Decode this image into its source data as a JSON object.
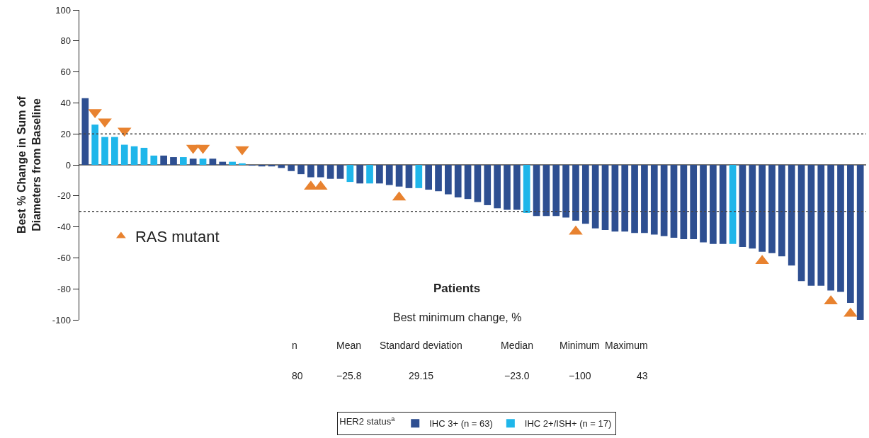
{
  "chart_data": {
    "type": "bar",
    "ylabel": "Best % Change in Sum of\nDiameters from Baseline",
    "categories": [
      null,
      null,
      null,
      null,
      null,
      null,
      null,
      null,
      null,
      null,
      null,
      null,
      null,
      null,
      null,
      null,
      null,
      null,
      null,
      null,
      null,
      null,
      null,
      null,
      null,
      null,
      null,
      null,
      null,
      null,
      null,
      null,
      null,
      null,
      null,
      null,
      null,
      null,
      null,
      null,
      null,
      null,
      null,
      null,
      null,
      null,
      null,
      null,
      null,
      null,
      null,
      null,
      null,
      null,
      null,
      null,
      null,
      null,
      null,
      null,
      null,
      null,
      null,
      null,
      null,
      null,
      null,
      null,
      null,
      null,
      null,
      null,
      null,
      null,
      null,
      null,
      null,
      null,
      null,
      null
    ],
    "series": [
      {
        "name": "IHC 3+ (n = 63)",
        "color": "#2e4f91",
        "values": [
          43,
          null,
          null,
          null,
          null,
          null,
          null,
          null,
          6,
          5,
          null,
          4,
          null,
          4,
          2,
          null,
          null,
          -0.5,
          -1,
          -1,
          -2,
          -4,
          -6,
          -8,
          -8,
          -9,
          -9,
          null,
          -12,
          null,
          -12,
          -13,
          -14,
          -15,
          null,
          -16,
          -17,
          -19,
          -21,
          -22,
          -24,
          -26,
          -28,
          -29,
          -29,
          null,
          -33,
          -33,
          -33,
          -34,
          -36,
          -38,
          -41,
          -42,
          -43,
          -43,
          -44,
          -44,
          -45,
          -46,
          -47,
          -48,
          -48,
          -50,
          -51,
          -51,
          null,
          -53,
          -54,
          -56,
          -57,
          -59,
          -65,
          -75,
          -78,
          -78,
          -81,
          -82,
          -89,
          -100
        ]
      },
      {
        "name": "IHC 2+/ISH+ (n = 17)",
        "color": "#1fb6ea",
        "values": [
          null,
          26,
          18,
          18,
          13,
          12,
          11,
          6,
          null,
          null,
          5,
          null,
          4,
          null,
          null,
          2,
          1,
          null,
          null,
          null,
          null,
          null,
          null,
          null,
          null,
          null,
          null,
          -11,
          null,
          -12,
          null,
          null,
          null,
          null,
          -15,
          null,
          null,
          null,
          null,
          null,
          null,
          null,
          null,
          null,
          null,
          -31,
          null,
          null,
          null,
          null,
          null,
          null,
          null,
          null,
          null,
          null,
          null,
          null,
          null,
          null,
          null,
          null,
          null,
          null,
          null,
          null,
          -51,
          null,
          null,
          null,
          null,
          null,
          null,
          null,
          null,
          null,
          null,
          null,
          null,
          null
        ]
      },
      {
        "name": "RAS mutant",
        "type": "scatter",
        "marker": "triangle",
        "color": "#e8822f",
        "values": [
          null,
          34,
          28,
          null,
          22,
          null,
          null,
          null,
          null,
          null,
          null,
          11,
          11,
          null,
          null,
          null,
          10,
          null,
          null,
          null,
          null,
          null,
          null,
          -14,
          -14,
          null,
          null,
          null,
          null,
          null,
          null,
          null,
          -21,
          null,
          null,
          null,
          null,
          null,
          null,
          null,
          null,
          null,
          null,
          null,
          null,
          null,
          null,
          null,
          null,
          null,
          -43,
          null,
          null,
          null,
          null,
          null,
          null,
          null,
          null,
          null,
          null,
          null,
          null,
          null,
          null,
          null,
          null,
          null,
          null,
          -62,
          null,
          null,
          null,
          null,
          null,
          null,
          -88,
          null,
          -96,
          null
        ]
      }
    ],
    "ylim": [
      -100,
      100
    ],
    "yticks": [
      -100,
      -80,
      -60,
      -40,
      -20,
      0,
      20,
      40,
      60,
      80,
      100
    ],
    "ref_lines": [
      {
        "axis": "y",
        "value": 20,
        "color": "#444444",
        "line_style": "dotted"
      },
      {
        "axis": "y",
        "value": -30,
        "color": "#444444",
        "line_style": "dotted"
      }
    ],
    "legend": "bottom",
    "legend_title": "HER2 status$^{a}$",
    "grid": false,
    "annotations": [
      "Patients",
      "Best minimum change, %",
      "n",
      "Mean",
      "Standard deviation",
      "Median",
      "Minimum",
      "Maximum",
      "80",
      "−25.8",
      "29.15",
      "−23.0",
      "−100",
      "43"
    ]
  }
}
